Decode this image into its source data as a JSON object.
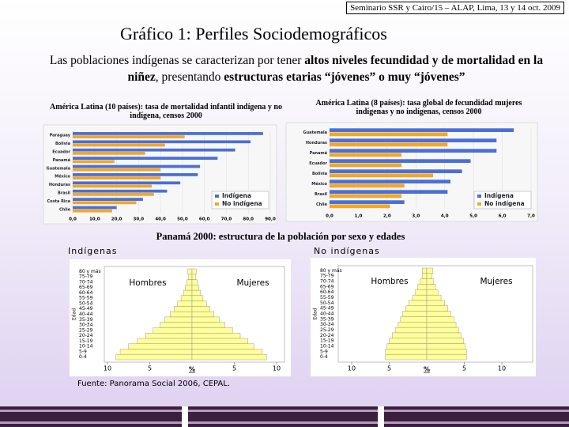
{
  "header": "Seminario SSR y Cairo/15 – ALAP, Lima, 13 y 14 oct. 2009",
  "title": "Gráfico 1:  Perfiles Sociodemográficos",
  "subtitle": [
    "Las poblaciones indígenas se caracterizan por tener ",
    "altos niveles fecundidad y de mortalidad en la niñez",
    ", presentando ",
    "estructuras etarias “jóvenes” o muy “jóvenes”"
  ],
  "pyramid_title": "Panamá 2000: estructura de la población por sexo y edades",
  "source": "Fuente: Panorama Social 2006, CEPAL.",
  "chart_data": [
    {
      "type": "hbar",
      "title": "América Latina (10 países): tasa de mortalidad infantil indígena y no indígena, censos 2000",
      "categories": [
        "Paraguay",
        "Bolivia",
        "Ecuador",
        "Panamá",
        "Guatemala",
        "México",
        "Honduras",
        "Brasil",
        "Costa Rica",
        "Chile"
      ],
      "series": [
        {
          "name": "Indígena",
          "color": "#4a6fd6",
          "values": [
            86.7,
            81,
            74,
            66,
            58,
            57,
            49,
            43,
            32,
            20
          ]
        },
        {
          "name": "No indígena",
          "color": "#f5a623",
          "values": [
            51,
            42,
            33,
            19,
            40,
            40,
            36,
            37,
            29,
            18
          ]
        }
      ],
      "xlim": [
        0,
        90
      ],
      "xticks": [
        {
          "value": 0,
          "label": "0,0"
        },
        {
          "value": 10,
          "label": "10,0"
        },
        {
          "value": 20,
          "label": "20,0"
        },
        {
          "value": 30,
          "label": "30,0"
        },
        {
          "value": 40,
          "label": "40,0"
        },
        {
          "value": 50,
          "label": "50,0"
        },
        {
          "value": 60,
          "label": "60,0"
        },
        {
          "value": 70,
          "label": "70,0"
        },
        {
          "value": 80,
          "label": "80,0"
        },
        {
          "value": 90,
          "label": "90,0"
        }
      ],
      "legend": "lower right"
    },
    {
      "type": "hbar",
      "title": "América Latina (8 países): tasa global de fecundidad mujeres indígenas y no indígenas, censos 2000",
      "categories": [
        "Guatemala",
        "Honduras",
        "Panamá",
        "Ecuador",
        "Bolivia",
        "México",
        "Brasil",
        "Chile"
      ],
      "series": [
        {
          "name": "Indígena",
          "color": "#4a6fd6",
          "values": [
            6.4,
            5.8,
            5.8,
            4.9,
            4.6,
            4.2,
            4.1,
            2.6
          ]
        },
        {
          "name": "No indígena",
          "color": "#f5a623",
          "values": [
            4.1,
            4.1,
            2.5,
            2.5,
            3.6,
            2.6,
            2.5,
            2.1
          ]
        }
      ],
      "xlim": [
        0,
        7
      ],
      "xticks": [
        {
          "value": 0,
          "label": "0,0"
        },
        {
          "value": 1,
          "label": "1,0"
        },
        {
          "value": 2,
          "label": "2,0"
        },
        {
          "value": 3,
          "label": "3,0"
        },
        {
          "value": 4,
          "label": "4,0"
        },
        {
          "value": 5,
          "label": "5,0"
        },
        {
          "value": 6,
          "label": "6,0"
        },
        {
          "value": 7,
          "label": "7,0"
        }
      ],
      "legend": "lower right"
    },
    {
      "type": "pyramid",
      "title": "Indígenas",
      "ylabel": "Edad",
      "xlabel": "%",
      "categories": [
        "0-4",
        "5-9",
        "10-14",
        "15-19",
        "20-24",
        "25-29",
        "30-34",
        "35-39",
        "40-44",
        "45-49",
        "50-54",
        "55-59",
        "60-64",
        "65-69",
        "70-74",
        "75-79",
        "80 y más"
      ],
      "series": [
        {
          "name": "Hombres",
          "color": "#ffff99",
          "values": [
            9.0,
            8.5,
            7.5,
            6.5,
            5.5,
            4.6,
            3.8,
            3.2,
            2.6,
            2.1,
            1.7,
            1.3,
            1.0,
            0.8,
            0.6,
            0.4,
            0.5
          ]
        },
        {
          "name": "Mujeres",
          "color": "#ffff99",
          "values": [
            8.8,
            8.3,
            7.3,
            6.6,
            5.7,
            4.8,
            3.9,
            3.2,
            2.6,
            2.1,
            1.7,
            1.3,
            1.0,
            0.8,
            0.6,
            0.4,
            0.5
          ]
        }
      ],
      "xlim": [
        -10,
        10
      ],
      "xticks": [
        {
          "value": -10,
          "label": "10"
        },
        {
          "value": -5,
          "label": "5"
        },
        5,
        10
      ]
    },
    {
      "type": "pyramid",
      "title": "No indígenas",
      "ylabel": "Edad",
      "xlabel": "%",
      "categories": [
        "0-4",
        "5-9",
        "10-14",
        "15-19",
        "20-24",
        "25-29",
        "30-34",
        "35-39",
        "40-44",
        "45-49",
        "50-54",
        "55-59",
        "60-64",
        "65-69",
        "70-74",
        "75-79",
        "80 y más"
      ],
      "series": [
        {
          "name": "Hombres",
          "color": "#ffff99",
          "values": [
            5.5,
            5.5,
            5.3,
            5.0,
            4.6,
            4.2,
            3.8,
            3.5,
            3.2,
            2.8,
            2.4,
            1.9,
            1.5,
            1.2,
            0.9,
            0.6,
            0.6
          ]
        },
        {
          "name": "Mujeres",
          "color": "#ffff99",
          "values": [
            5.3,
            5.3,
            5.1,
            4.9,
            4.6,
            4.3,
            3.9,
            3.6,
            3.2,
            2.8,
            2.4,
            1.9,
            1.5,
            1.2,
            0.9,
            0.7,
            0.8
          ]
        }
      ],
      "xlim": [
        -10,
        10
      ],
      "xticks": [
        {
          "value": -10,
          "label": "10"
        },
        {
          "value": -5,
          "label": "5"
        },
        5,
        10
      ]
    }
  ]
}
